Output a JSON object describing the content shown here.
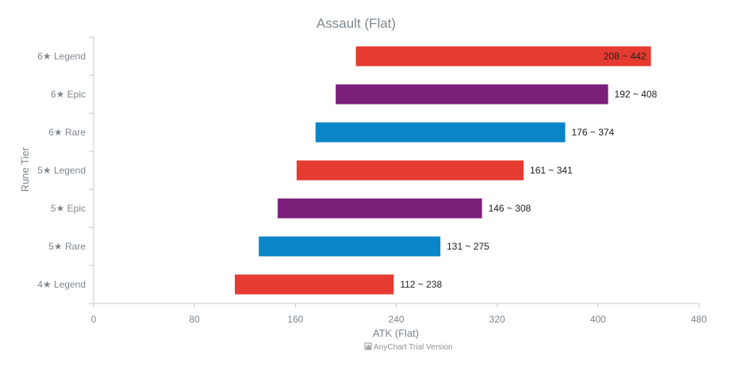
{
  "chart_data": {
    "type": "bar",
    "orientation": "horizontal",
    "range_bars": true,
    "title": "Assault (Flat)",
    "xlabel": "ATK (Flat)",
    "ylabel": "Rune Tier",
    "xlim": [
      0,
      480
    ],
    "x_ticks": [
      0,
      80,
      160,
      240,
      320,
      400,
      480
    ],
    "grid": false,
    "categories": [
      "6★ Legend",
      "6★ Epic",
      "6★ Rare",
      "5★ Legend",
      "5★ Epic",
      "5★ Rare",
      "4★ Legend"
    ],
    "low": [
      208,
      192,
      176,
      161,
      146,
      131,
      112
    ],
    "high": [
      442,
      408,
      374,
      341,
      308,
      275,
      238
    ],
    "labels": [
      "208 ~ 442",
      "192 ~ 408",
      "176 ~ 374",
      "161 ~ 341",
      "146 ~ 308",
      "131 ~ 275",
      "112 ~ 238"
    ],
    "colors": [
      "#e53b30",
      "#7b1f7b",
      "#0a86c8",
      "#e53b30",
      "#7b1f7b",
      "#0a86c8",
      "#e53b30"
    ]
  },
  "credit": {
    "text": "AnyChart Trial Version",
    "icon": "chart-logo-icon"
  }
}
